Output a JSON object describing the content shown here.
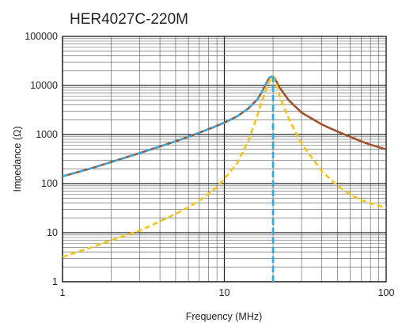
{
  "chart_data": {
    "type": "line",
    "title": "HER4027C-220M",
    "xlabel": "Frequency (MHz)",
    "ylabel": "Impedance (Ω)",
    "x_scale": "log",
    "y_scale": "log",
    "xlim": [
      1,
      100
    ],
    "ylim": [
      1,
      100000
    ],
    "x_ticks": [
      1,
      10,
      100
    ],
    "x_tick_labels": [
      "1",
      "10",
      "100"
    ],
    "y_ticks": [
      1,
      10,
      100,
      1000,
      10000,
      100000
    ],
    "y_tick_labels": [
      "1",
      "10",
      "100",
      "1000",
      "10000",
      "100000"
    ],
    "grid": true,
    "legend": "none",
    "series": [
      {
        "color": "#a0522d",
        "style": "solid",
        "x": [
          1,
          1.5,
          2,
          3,
          4,
          5,
          6,
          7,
          8,
          9,
          10,
          12,
          14,
          16,
          17,
          18,
          19,
          20,
          21,
          22,
          25,
          30,
          40,
          50,
          60,
          70,
          80,
          100
        ],
        "y": [
          140,
          205,
          275,
          420,
          570,
          730,
          900,
          1090,
          1290,
          1510,
          1750,
          2350,
          3350,
          5200,
          7200,
          10500,
          14500,
          15500,
          12000,
          9000,
          5000,
          2800,
          1600,
          1150,
          900,
          730,
          620,
          500
        ]
      },
      {
        "color": "#3aa8d8",
        "style": "dashed",
        "x": [
          1,
          1.5,
          2,
          3,
          4,
          5,
          6,
          7,
          8,
          9,
          10,
          12,
          14,
          16,
          17,
          18,
          19,
          20
        ],
        "y": [
          140,
          205,
          275,
          420,
          570,
          730,
          900,
          1090,
          1290,
          1510,
          1750,
          2350,
          3350,
          5200,
          7200,
          10500,
          14500,
          15500
        ]
      },
      {
        "color": "#f5c518",
        "style": "dashed",
        "x": [
          1,
          1.5,
          2,
          3,
          4,
          5,
          6,
          7,
          8,
          9,
          10,
          12,
          14,
          16,
          17,
          18,
          19,
          20,
          21,
          22,
          25,
          30,
          40,
          50,
          60,
          70,
          80,
          100
        ],
        "y": [
          3.2,
          5,
          7,
          11,
          17,
          24,
          33,
          45,
          62,
          85,
          125,
          260,
          720,
          2400,
          4600,
          7800,
          12500,
          15500,
          10500,
          6000,
          2100,
          650,
          180,
          90,
          60,
          46,
          40,
          32
        ]
      }
    ],
    "annotations": [
      {
        "kind": "vertical-dashed-line",
        "x": 20,
        "y_from": 1,
        "y_to": 15500,
        "color": "#3aa8d8"
      }
    ]
  }
}
